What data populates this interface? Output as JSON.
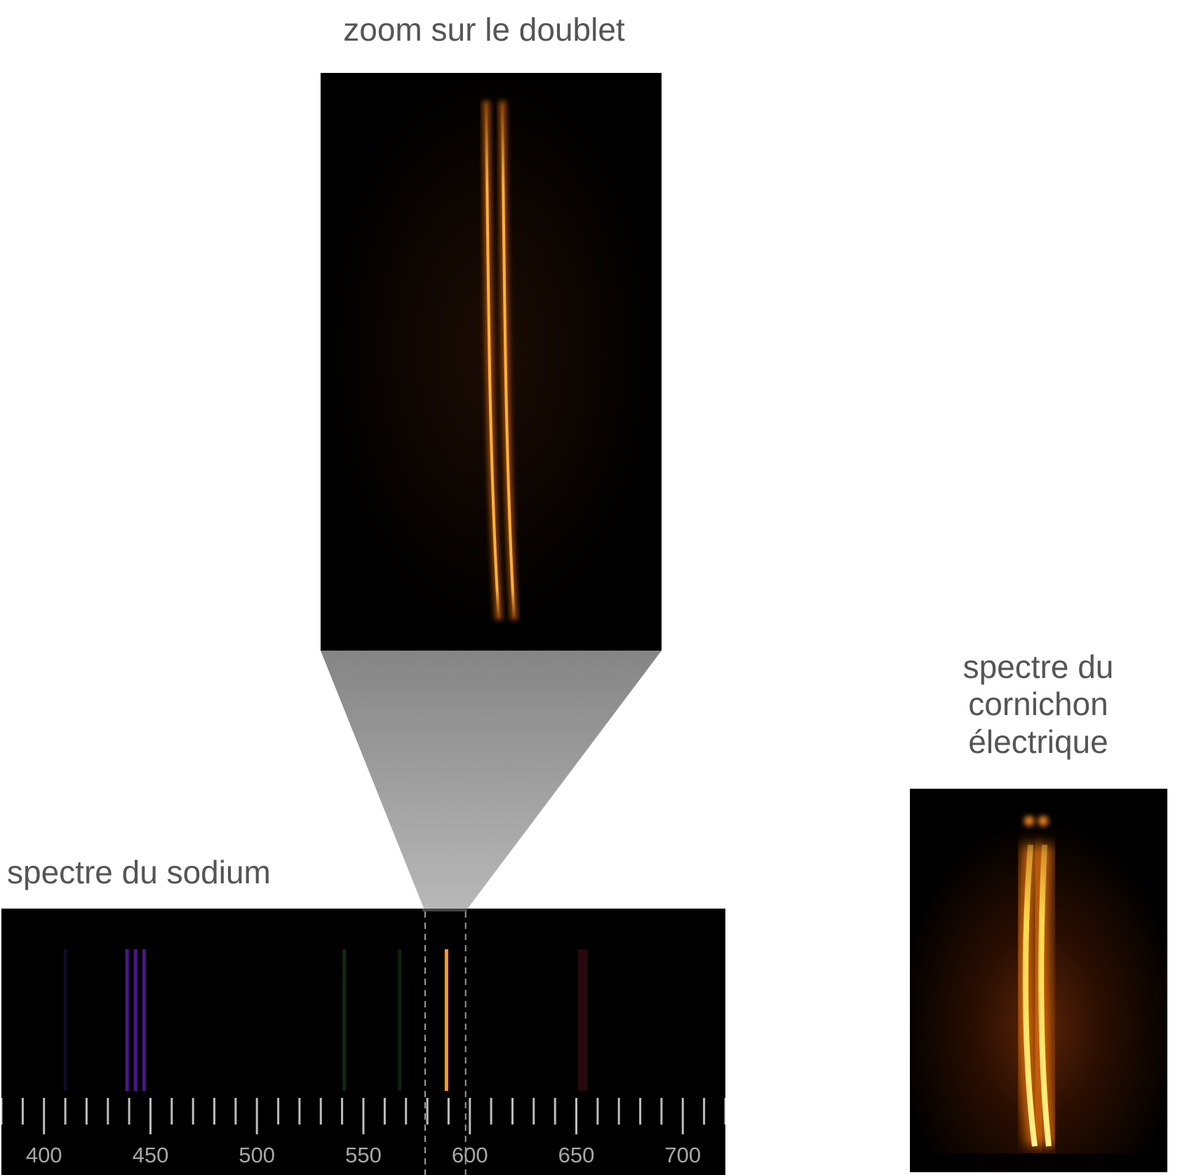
{
  "titles": {
    "zoom": "zoom sur le doublet",
    "sodium": "spectre du sodium",
    "pickle_lines": [
      "spectre du",
      "cornichon",
      "électrique"
    ]
  },
  "spectrum": {
    "axis_min": 380,
    "axis_max": 720,
    "tick_labels": [
      "400",
      "450",
      "500",
      "550",
      "600",
      "650",
      "700"
    ],
    "selection_nm": [
      579,
      598
    ],
    "lines": [
      {
        "nm": 410,
        "color": "#120a26",
        "name": "violet-line-410"
      },
      {
        "nm": 439,
        "color": "#4a1686",
        "name": "violet-line-439"
      },
      {
        "nm": 443,
        "color": "#4a1686",
        "name": "violet-line-443"
      },
      {
        "nm": 447,
        "color": "#4a1686",
        "name": "violet-line-447"
      },
      {
        "nm": 541,
        "color": "#0f2a14",
        "name": "green-line-541"
      },
      {
        "nm": 567,
        "color": "#10200c",
        "name": "green-line-567"
      },
      {
        "nm": 589,
        "color": "#ff9a22",
        "name": "sodium-d-line"
      },
      {
        "nm": 653,
        "color": "#280810",
        "name": "red-line-653"
      }
    ]
  },
  "colors": {
    "doublet": "#ffb13b",
    "doublet_glow": "#ff7a10",
    "pickle": "#ffd84a",
    "pickle_glow": "#ff7e10"
  }
}
